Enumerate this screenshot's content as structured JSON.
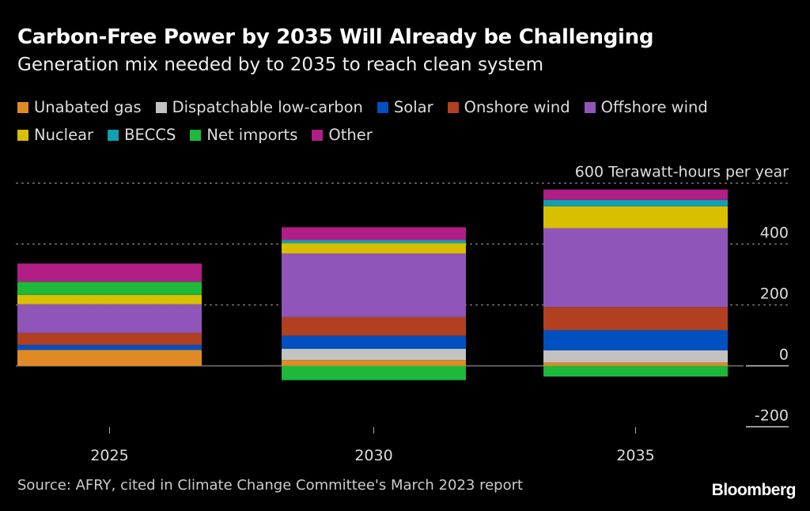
{
  "title": "Carbon-Free Power by 2035 Will Already be Challenging",
  "subtitle": "Generation mix needed by to 2035 to reach clean system",
  "source": "Source: AFRY, cited in Climate Change Committee's March 2023 report",
  "logo": "Bloomberg",
  "chart_data": {
    "type": "bar",
    "stacked": true,
    "title": "Carbon-Free Power by 2035 Will Already be Challenging",
    "subtitle": "Generation mix needed by to 2035 to reach clean system",
    "ylabel": "Terawatt-hours per year",
    "ylim": [
      -200,
      600
    ],
    "yticks": [
      600,
      400,
      200,
      0,
      -200
    ],
    "ytick_labels": [
      "600 Terawatt-hours per year",
      "400",
      "200",
      "0",
      "-200"
    ],
    "categories": [
      "2025",
      "2030",
      "2035"
    ],
    "legend_placement": "top-left",
    "series": [
      {
        "name": "Unabated gas",
        "color": "#e08a25",
        "values": [
          52,
          19,
          11
        ]
      },
      {
        "name": "Dispatchable low-carbon",
        "color": "#c2c2c2",
        "values": [
          0,
          37,
          40
        ]
      },
      {
        "name": "Solar",
        "color": "#0050c0",
        "values": [
          17,
          43,
          66
        ]
      },
      {
        "name": "Onshore wind",
        "color": "#b0401f",
        "values": [
          39,
          61,
          76
        ]
      },
      {
        "name": "Offshore wind",
        "color": "#9055b8",
        "values": [
          94,
          209,
          259
        ]
      },
      {
        "name": "Nuclear",
        "color": "#d8bf00",
        "values": [
          31,
          34,
          72
        ]
      },
      {
        "name": "BECCS",
        "color": "#10a0b0",
        "values": [
          0,
          10,
          21
        ]
      },
      {
        "name": "Net imports",
        "color": "#1db83c",
        "values": [
          43,
          -47,
          -35
        ]
      },
      {
        "name": "Other",
        "color": "#b01e86",
        "values": [
          60,
          42,
          34
        ]
      }
    ]
  }
}
